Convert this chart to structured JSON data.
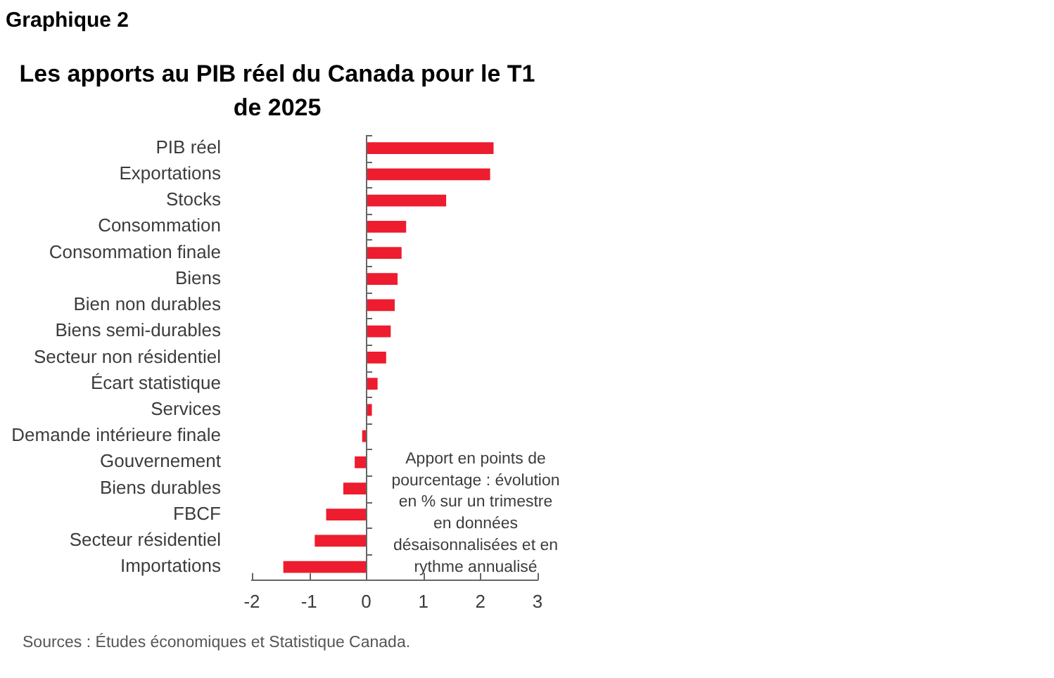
{
  "chart_data": {
    "type": "bar",
    "orientation": "horizontal",
    "title": "Les apports au PIB réel du Canada pour le T1 de 2025",
    "categories": [
      "PIB réel",
      "Exportations",
      "Stocks",
      "Consommation",
      "Consommation finale",
      "Biens",
      "Bien non durables",
      "Biens semi-durables",
      "Secteur non résidentiel",
      "Écart statistique",
      "Services",
      "Demande intérieure finale",
      "Gouvernement",
      "Biens durables",
      "FBCF",
      "Secteur résidentiel",
      "Importations"
    ],
    "values": [
      2.23,
      2.17,
      1.4,
      0.7,
      0.62,
      0.55,
      0.5,
      0.43,
      0.35,
      0.2,
      0.1,
      -0.07,
      -0.2,
      -0.4,
      -0.7,
      -0.9,
      -1.45
    ],
    "color": "#ed1c2e",
    "xlim": [
      -2,
      3
    ],
    "xticks": [
      -2,
      -1,
      0,
      1,
      2,
      3
    ],
    "grid": false,
    "legend": false,
    "ref_lines": [
      {
        "axis": "x",
        "value": 0,
        "color": "#666666"
      }
    ],
    "annotations": [
      "Graphique 2",
      "Apport en points de\npourcentage : évolution\nen % sur un trimestre\nen données\ndésaisonnalisées et en\nrythme annualisé",
      "Sources : Études économiques et Statistique Canada."
    ]
  }
}
